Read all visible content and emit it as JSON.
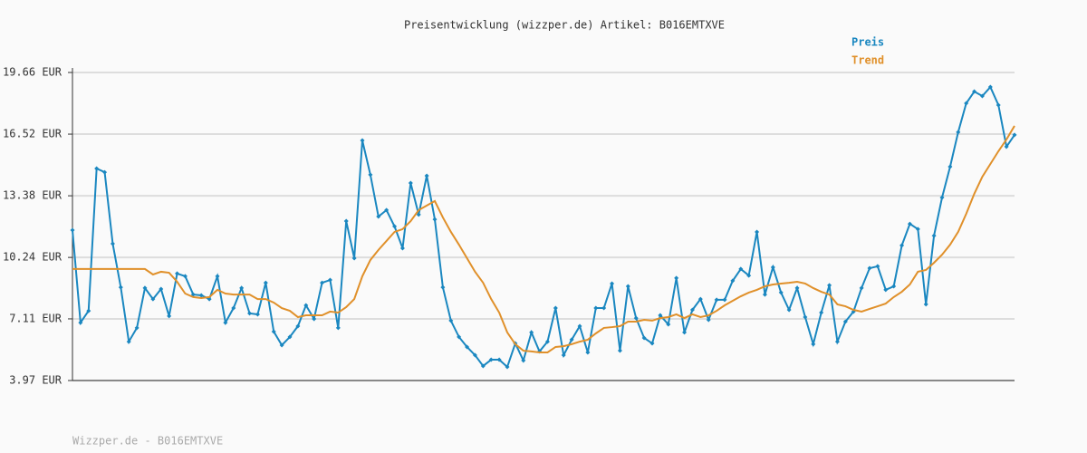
{
  "chart_data": {
    "type": "line",
    "title": "Preisentwicklung (wizzper.de) Artikel: B016EMTXVE",
    "footer": "Wizzper.de - B016EMTXVE",
    "legend": "top-right",
    "grid": true,
    "ylim": [
      3.97,
      19.66
    ],
    "yticks": [
      {
        "value": 3.97,
        "label": "3.97 EUR"
      },
      {
        "value": 7.11,
        "label": "7.11 EUR"
      },
      {
        "value": 10.24,
        "label": "10.24 EUR"
      },
      {
        "value": 13.38,
        "label": "13.38 EUR"
      },
      {
        "value": 16.52,
        "label": "16.52 EUR"
      },
      {
        "value": 19.66,
        "label": "19.66 EUR"
      }
    ],
    "categories": [
      null,
      null,
      null,
      null,
      null,
      null,
      null,
      null,
      null,
      null,
      null,
      null,
      null,
      null,
      null,
      null,
      null,
      null,
      null,
      null,
      null,
      null,
      null,
      null,
      null,
      null,
      null,
      null,
      null,
      null,
      null,
      null,
      null,
      null,
      null,
      null,
      null,
      null,
      null,
      null,
      null,
      null,
      null,
      null,
      null,
      null,
      null,
      null,
      null,
      null,
      null,
      null,
      null,
      null,
      null,
      null,
      null,
      null,
      null,
      null,
      null,
      null,
      null,
      null,
      null,
      null,
      null,
      null,
      null,
      null,
      null,
      null,
      null,
      null,
      null,
      null,
      null,
      null,
      null,
      null,
      null,
      null,
      null,
      null,
      null,
      null,
      null,
      null,
      null,
      null,
      null,
      null,
      null,
      null,
      null,
      null,
      null,
      null,
      null,
      null,
      null,
      null,
      null,
      null,
      null,
      null,
      null,
      null,
      null,
      null,
      null,
      null,
      null,
      null,
      null,
      null,
      null,
      null
    ],
    "series": [
      {
        "name": "Preis",
        "color": "#1a87c0",
        "markers": true,
        "values": [
          11.63,
          6.92,
          7.52,
          14.77,
          14.58,
          10.94,
          8.72,
          5.95,
          6.65,
          8.68,
          8.12,
          8.63,
          7.25,
          9.42,
          9.28,
          8.35,
          8.31,
          8.12,
          9.28,
          6.92,
          7.66,
          8.68,
          7.39,
          7.34,
          8.95,
          6.46,
          5.77,
          6.19,
          6.74,
          7.8,
          7.11,
          8.95,
          9.09,
          6.65,
          12.09,
          10.2,
          16.2,
          14.45,
          12.32,
          12.65,
          11.82,
          10.71,
          14.03,
          12.42,
          14.4,
          12.18,
          8.72,
          7.02,
          6.19,
          5.68,
          5.26,
          4.71,
          5.03,
          5.03,
          4.66,
          5.86,
          4.99,
          6.42,
          5.45,
          5.95,
          7.66,
          5.26,
          6.05,
          6.74,
          5.4,
          7.66,
          7.66,
          8.91,
          5.49,
          8.77,
          7.15,
          6.14,
          5.86,
          7.29,
          6.83,
          9.19,
          6.42,
          7.57,
          8.12,
          7.06,
          8.08,
          8.08,
          9.05,
          9.65,
          9.32,
          11.54,
          8.35,
          9.74,
          8.45,
          7.57,
          8.68,
          7.2,
          5.82,
          7.43,
          8.82,
          5.95,
          6.97,
          7.48,
          8.68,
          9.69,
          9.79,
          8.59,
          8.77,
          10.85,
          11.95,
          11.68,
          7.85,
          11.35,
          13.29,
          14.86,
          16.62,
          18.09,
          18.69,
          18.46,
          18.92,
          18.0,
          15.88,
          16.48
        ]
      },
      {
        "name": "Trend",
        "color": "#e0902a",
        "markers": false,
        "values": [
          9.65,
          9.65,
          9.65,
          9.65,
          9.65,
          9.65,
          9.65,
          9.65,
          9.65,
          9.65,
          9.37,
          9.51,
          9.46,
          9.0,
          8.4,
          8.22,
          8.17,
          8.22,
          8.59,
          8.4,
          8.35,
          8.35,
          8.35,
          8.12,
          8.12,
          7.94,
          7.66,
          7.52,
          7.2,
          7.29,
          7.29,
          7.29,
          7.48,
          7.43,
          7.71,
          8.12,
          9.28,
          10.11,
          10.62,
          11.08,
          11.54,
          11.68,
          12.09,
          12.65,
          12.88,
          13.11,
          12.28,
          11.54,
          10.89,
          10.2,
          9.51,
          8.95,
          8.12,
          7.43,
          6.42,
          5.82,
          5.49,
          5.45,
          5.4,
          5.4,
          5.68,
          5.72,
          5.82,
          5.95,
          6.05,
          6.37,
          6.65,
          6.69,
          6.74,
          6.97,
          6.97,
          7.06,
          7.02,
          7.15,
          7.2,
          7.34,
          7.15,
          7.34,
          7.2,
          7.29,
          7.52,
          7.8,
          8.03,
          8.26,
          8.45,
          8.59,
          8.77,
          8.86,
          8.91,
          8.95,
          9.0,
          8.91,
          8.68,
          8.49,
          8.35,
          7.85,
          7.75,
          7.57,
          7.48,
          7.62,
          7.75,
          7.89,
          8.22,
          8.49,
          8.86,
          9.51,
          9.6,
          9.97,
          10.38,
          10.89,
          11.54,
          12.46,
          13.48,
          14.35,
          15.0,
          15.65,
          16.25,
          16.94
        ]
      }
    ]
  }
}
